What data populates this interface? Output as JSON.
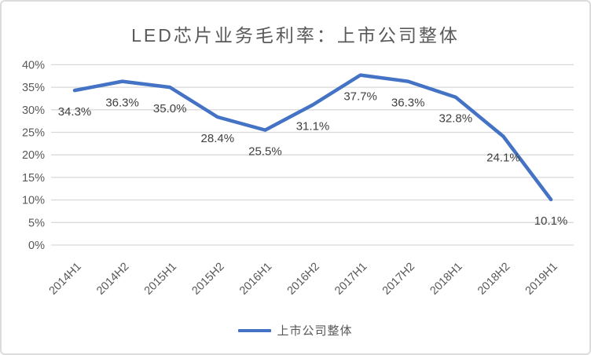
{
  "card": {
    "title": "LED芯片业务毛利率：上市公司整体"
  },
  "colors": {
    "line": "#4472C4",
    "grid": "#D9D9D9",
    "axis_text": "#595959",
    "data_label_text": "#404040",
    "title_text": "#595959",
    "card_border": "#DCDCDC"
  },
  "chart_data": {
    "type": "line",
    "title": "LED芯片业务毛利率：上市公司整体",
    "categories": [
      "2014H1",
      "2014H2",
      "2015H1",
      "2015H2",
      "2016H1",
      "2016H2",
      "2017H1",
      "2017H2",
      "2018H1",
      "2018H2",
      "2019H1"
    ],
    "series": [
      {
        "name": "上市公司整体",
        "values": [
          34.3,
          36.3,
          35.0,
          28.4,
          25.5,
          31.1,
          37.7,
          36.3,
          32.8,
          24.1,
          10.1
        ]
      }
    ],
    "data_labels": [
      "34.3%",
      "36.3%",
      "35.0%",
      "28.4%",
      "25.5%",
      "31.1%",
      "37.7%",
      "36.3%",
      "32.8%",
      "24.1%",
      "10.1%"
    ],
    "y_ticks": [
      "0%",
      "5%",
      "10%",
      "15%",
      "20%",
      "25%",
      "30%",
      "35%",
      "40%"
    ],
    "y_tick_step": 5,
    "ylim": [
      0,
      40
    ],
    "grid": true,
    "legend_position": "bottom"
  }
}
